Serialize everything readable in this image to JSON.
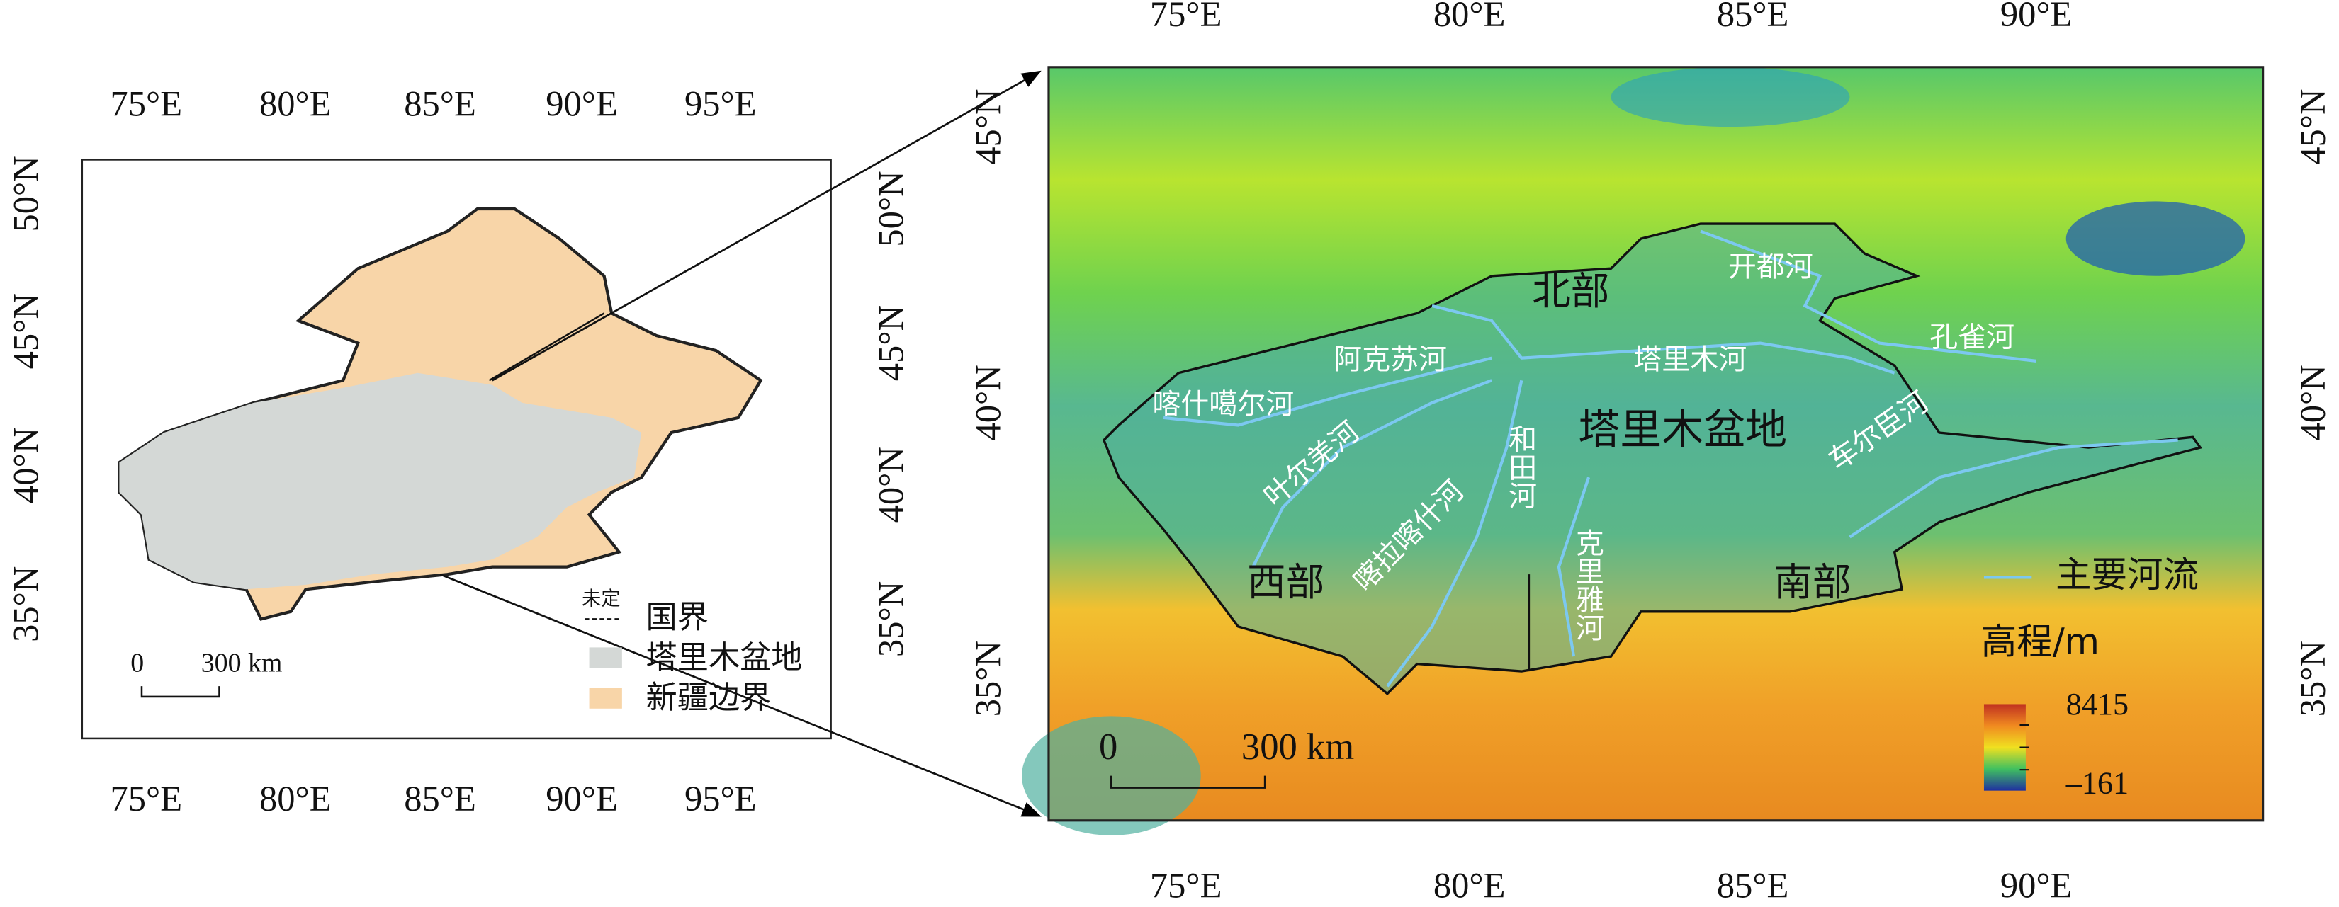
{
  "left_map": {
    "top_lon_labels": [
      "75°E",
      "80°E",
      "85°E",
      "90°E",
      "95°E"
    ],
    "bottom_lon_labels": [
      "75°E",
      "80°E",
      "85°E",
      "90°E",
      "95°E"
    ],
    "left_lat_labels": [
      "50°N",
      "45°N",
      "40°N",
      "35°N"
    ],
    "right_lat_labels": [
      "50°N",
      "45°N",
      "40°N",
      "35°N"
    ],
    "scale_bar": {
      "zero": "0",
      "distance": "300 km"
    },
    "legend": {
      "undetermined": "未定",
      "border": "国界",
      "basin": "塔里木盆地",
      "xinjiang": "新疆边界"
    }
  },
  "right_map": {
    "top_lon_labels": [
      "75°E",
      "80°E",
      "85°E",
      "90°E"
    ],
    "bottom_lon_labels": [
      "75°E",
      "80°E",
      "85°E",
      "90°E"
    ],
    "left_lat_labels": [
      "45°N",
      "40°N",
      "35°N"
    ],
    "right_lat_labels": [
      "45°N",
      "40°N",
      "35°N"
    ],
    "regions": {
      "north": "北部",
      "west": "西部",
      "south": "南部",
      "basin": "塔里木盆地"
    },
    "rivers": {
      "kaidu": "开都河",
      "kongque": "孔雀河",
      "tarim": "塔里木河",
      "aksu": "阿克苏河",
      "kashgar": "喀什噶尔河",
      "yarkand": "叶尔羌河",
      "karakash": "喀拉喀什河",
      "hotan": "和田河",
      "keriya": "克里雅河",
      "qarqan": "车尔臣河"
    },
    "legend": {
      "river": "主要河流",
      "elevation_title": "高程/m",
      "max": "8415",
      "min": "–161"
    },
    "scale_bar": {
      "zero": "0",
      "distance": "300 km"
    }
  }
}
